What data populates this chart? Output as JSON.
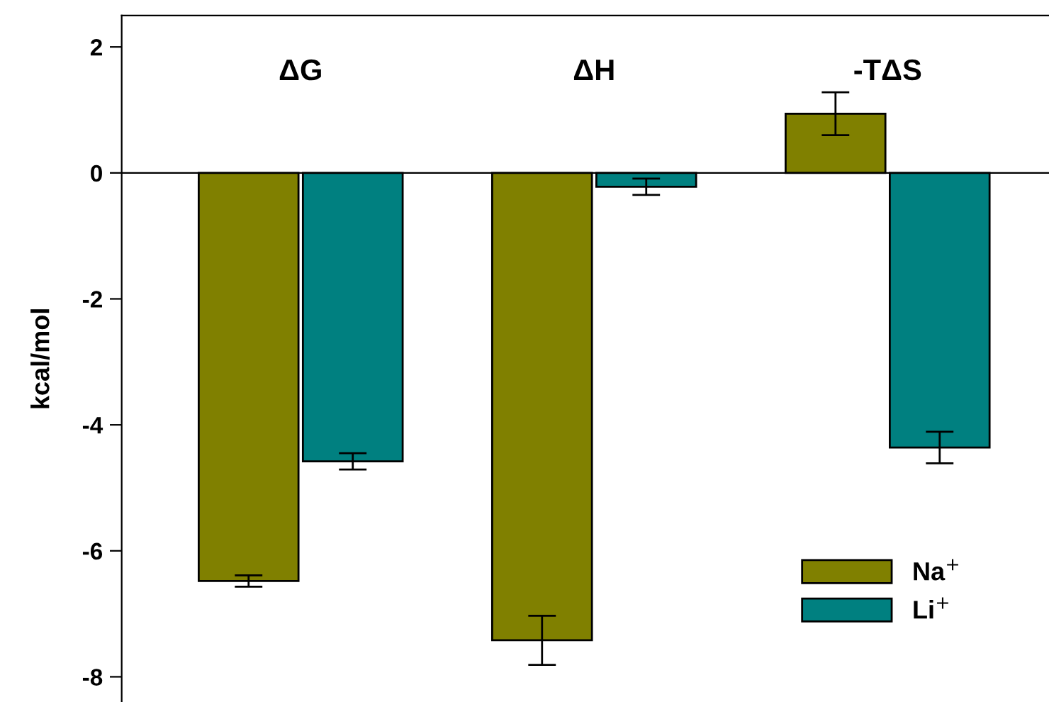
{
  "chart_data": {
    "type": "bar",
    "ylabel": "kcal/mol",
    "categories": [
      "ΔG",
      "ΔH",
      "-TΔS"
    ],
    "series": [
      {
        "name": "Na$^{+}$",
        "color": "#808000",
        "values": [
          -6.48,
          -7.42,
          0.94
        ],
        "errors": [
          0.09,
          0.39,
          0.34
        ]
      },
      {
        "name": "Li$^{+}$",
        "color": "#008080",
        "values": [
          -4.58,
          -0.22,
          -4.36
        ],
        "errors": [
          0.13,
          0.13,
          0.25
        ]
      }
    ],
    "ylim": [
      -8.4,
      2.5
    ],
    "yticks": [
      {
        "value": -8,
        "label": "-8"
      },
      {
        "value": -6,
        "label": "-6"
      },
      {
        "value": -4,
        "label": "-4"
      },
      {
        "value": -2,
        "label": "-2"
      },
      0,
      2
    ],
    "legend": "bottom right"
  }
}
